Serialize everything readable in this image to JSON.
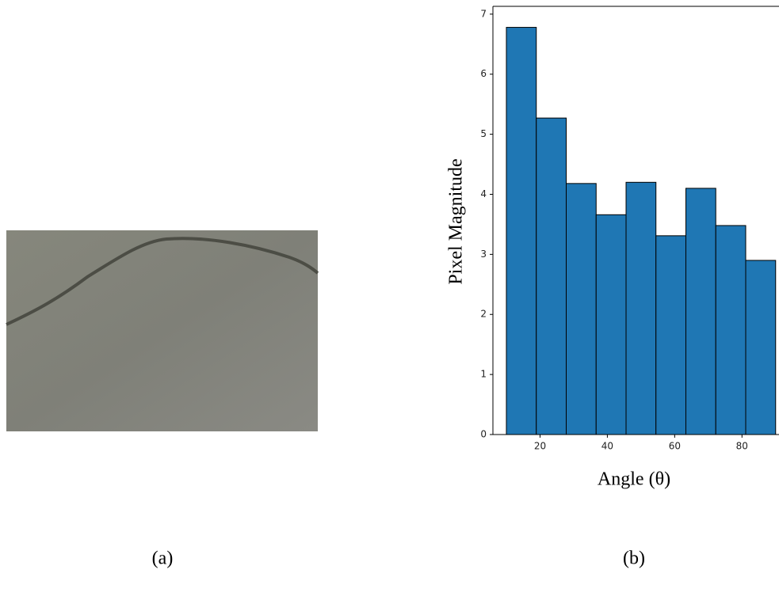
{
  "chart_data": {
    "type": "histogram",
    "bins": [
      10,
      18.89,
      27.78,
      36.67,
      45.56,
      54.44,
      63.33,
      72.22,
      81.11,
      90
    ],
    "values": [
      6.78,
      5.27,
      4.18,
      3.66,
      4.2,
      3.31,
      4.1,
      3.48,
      2.9
    ],
    "color": "#1f77b4",
    "edgecolor": "#000000",
    "xlabel": "Angle (θ)",
    "ylabel": "Pixel Magnitude",
    "xlim": [
      6,
      91
    ],
    "ylim": [
      0,
      7.13
    ],
    "xticks": [
      20,
      40,
      60,
      80
    ],
    "yticks": [
      0,
      1,
      2,
      3,
      4,
      5,
      6,
      7
    ]
  },
  "panel_labels": [
    "(a)",
    "(b)"
  ]
}
